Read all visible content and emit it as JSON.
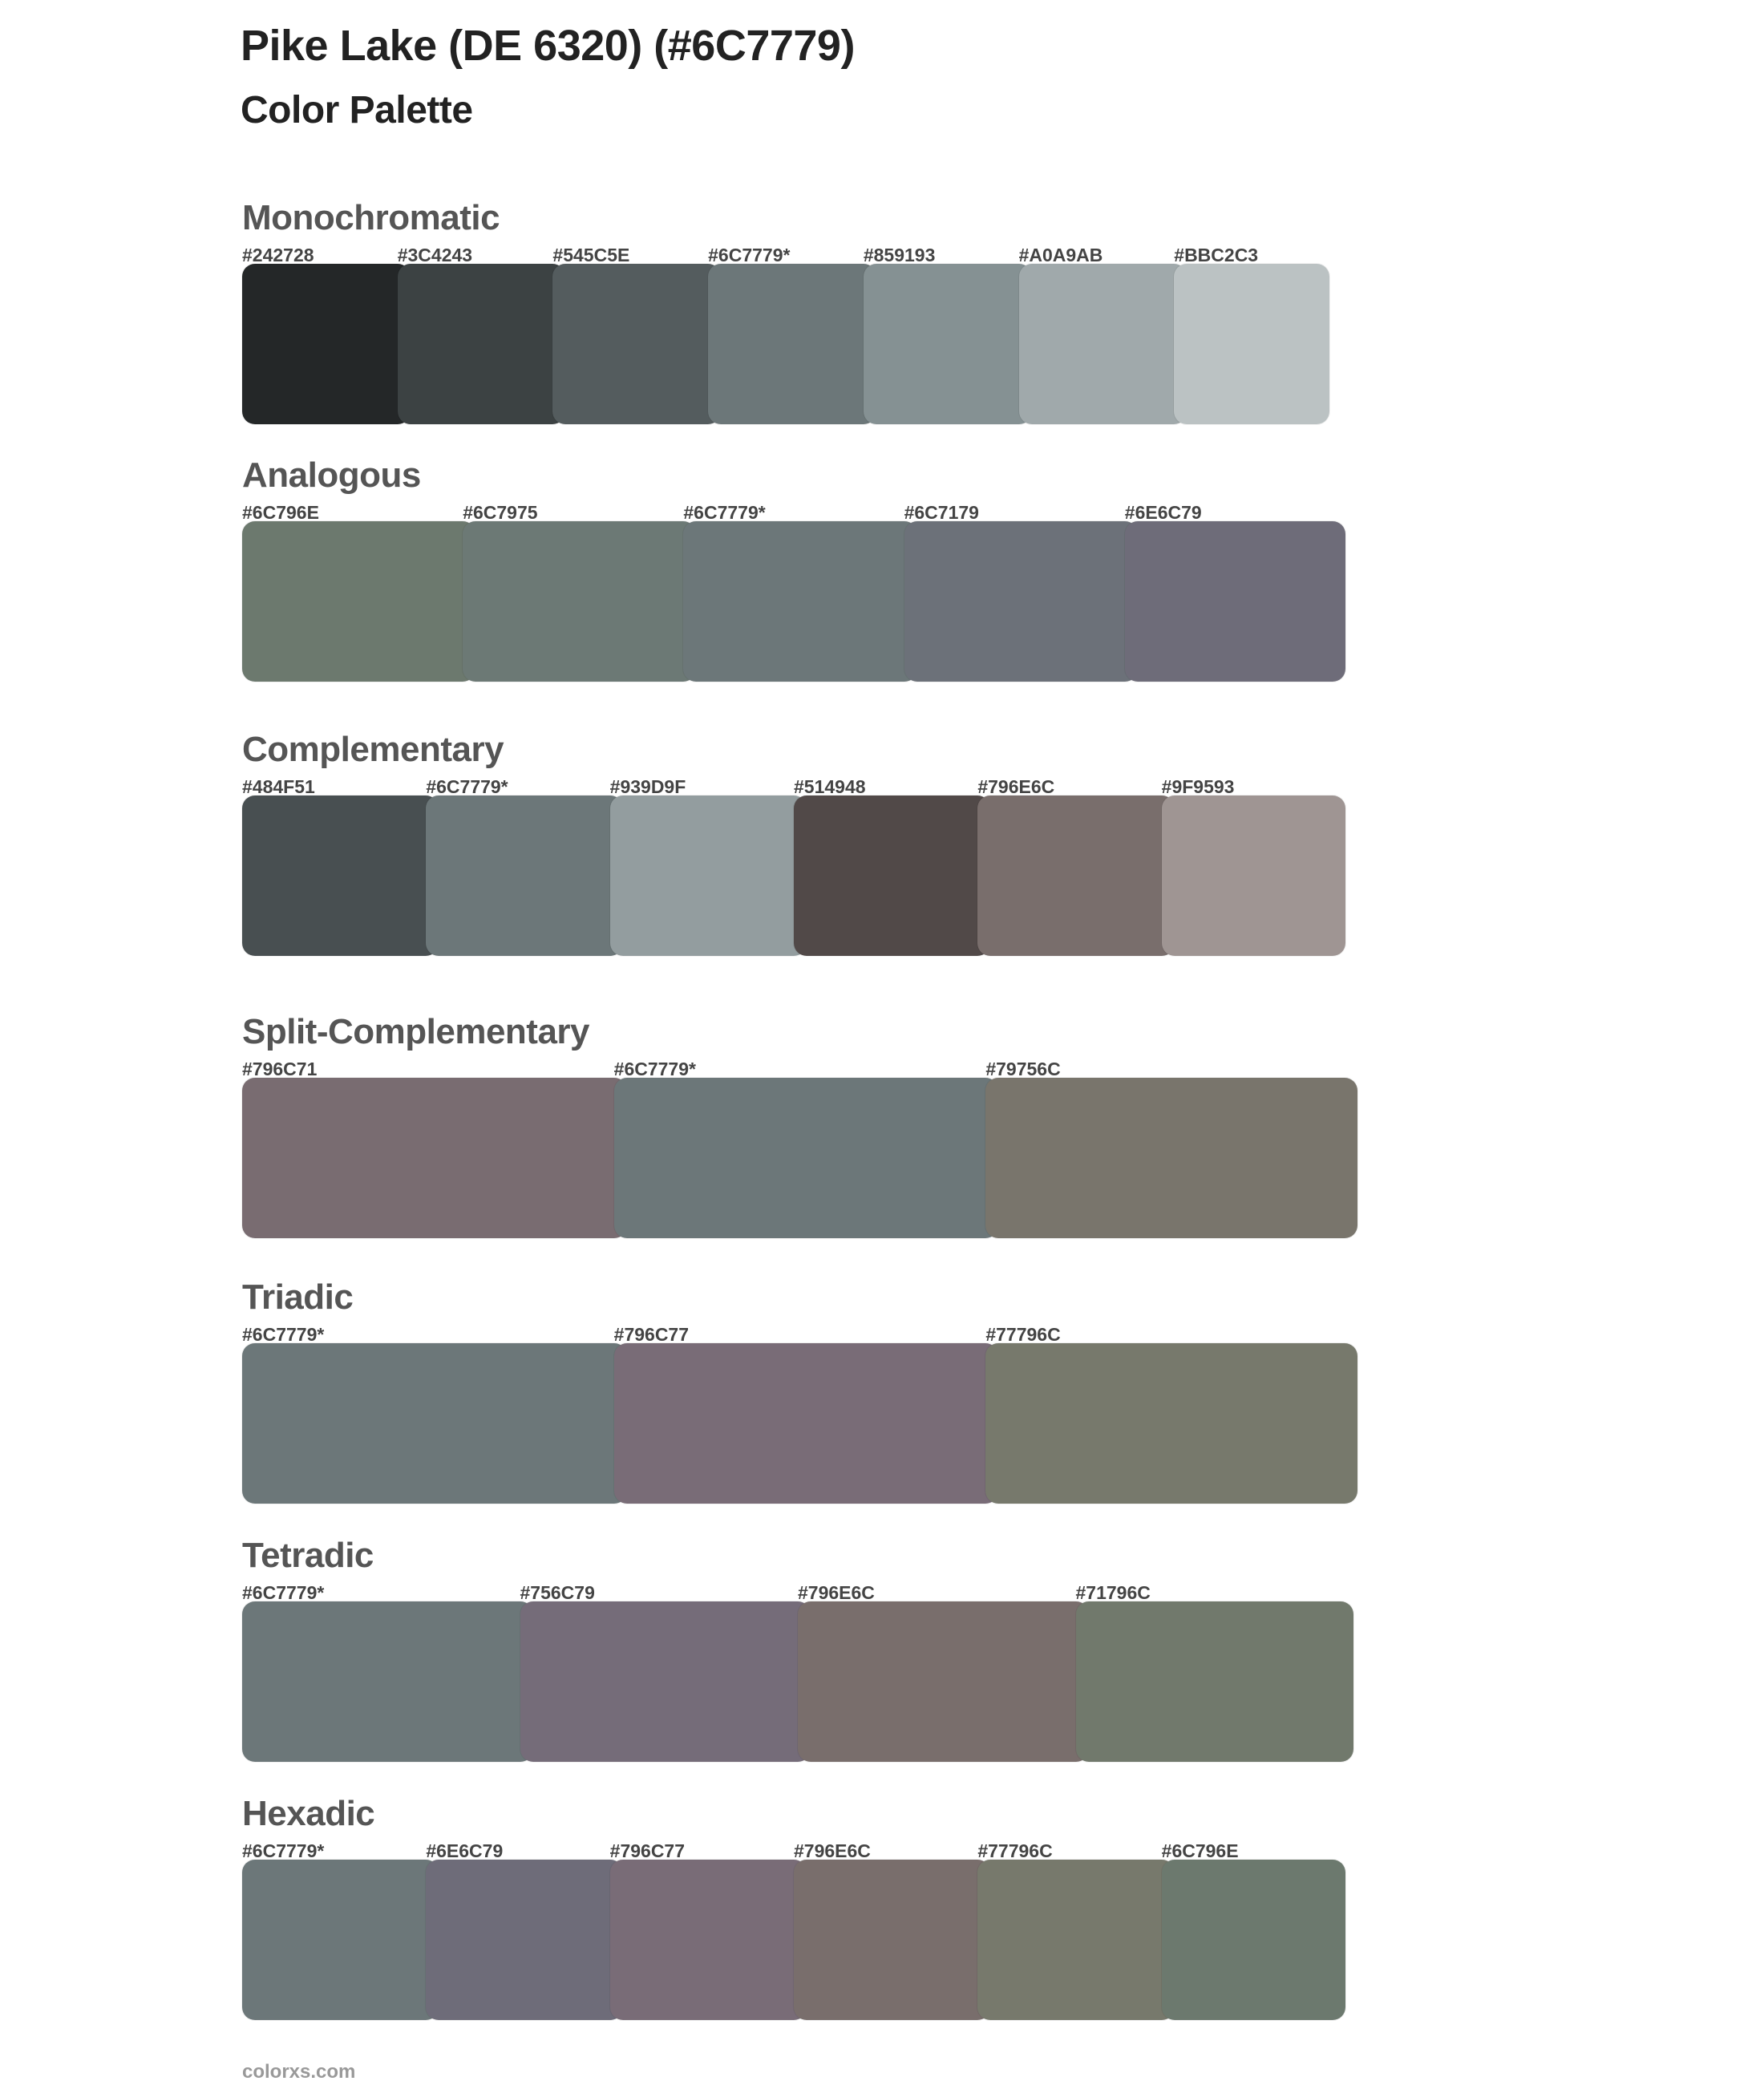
{
  "header": {
    "title": "Pike Lake (DE 6320) (#6C7779)",
    "subtitle": "Color Palette"
  },
  "sections": [
    {
      "name": "Monochromatic",
      "colors": [
        {
          "label": "#242728",
          "hex": "#242728"
        },
        {
          "label": "#3C4243",
          "hex": "#3C4243"
        },
        {
          "label": "#545C5E",
          "hex": "#545C5E"
        },
        {
          "label": "#6C7779*",
          "hex": "#6C7779"
        },
        {
          "label": "#859193",
          "hex": "#859193"
        },
        {
          "label": "#A0A9AB",
          "hex": "#A0A9AB"
        },
        {
          "label": "#BBC2C3",
          "hex": "#BBC2C3"
        }
      ]
    },
    {
      "name": "Analogous",
      "colors": [
        {
          "label": "#6C796E",
          "hex": "#6C796E"
        },
        {
          "label": "#6C7975",
          "hex": "#6C7975"
        },
        {
          "label": "#6C7779*",
          "hex": "#6C7779"
        },
        {
          "label": "#6C7179",
          "hex": "#6C7179"
        },
        {
          "label": "#6E6C79",
          "hex": "#6E6C79"
        }
      ]
    },
    {
      "name": "Complementary",
      "colors": [
        {
          "label": "#484F51",
          "hex": "#484F51"
        },
        {
          "label": "#6C7779*",
          "hex": "#6C7779"
        },
        {
          "label": "#939D9F",
          "hex": "#939D9F"
        },
        {
          "label": "#514948",
          "hex": "#514948"
        },
        {
          "label": "#796E6C",
          "hex": "#796E6C"
        },
        {
          "label": "#9F9593",
          "hex": "#9F9593"
        }
      ]
    },
    {
      "name": "Split-Complementary",
      "colors": [
        {
          "label": "#796C71",
          "hex": "#796C71"
        },
        {
          "label": "#6C7779*",
          "hex": "#6C7779"
        },
        {
          "label": "#79756C",
          "hex": "#79756C"
        }
      ]
    },
    {
      "name": "Triadic",
      "colors": [
        {
          "label": "#6C7779*",
          "hex": "#6C7779"
        },
        {
          "label": "#796C77",
          "hex": "#796C77"
        },
        {
          "label": "#77796C",
          "hex": "#77796C"
        }
      ]
    },
    {
      "name": "Tetradic",
      "colors": [
        {
          "label": "#6C7779*",
          "hex": "#6C7779"
        },
        {
          "label": "#756C79",
          "hex": "#756C79"
        },
        {
          "label": "#796E6C",
          "hex": "#796E6C"
        },
        {
          "label": "#71796C",
          "hex": "#71796C"
        }
      ]
    },
    {
      "name": "Hexadic",
      "colors": [
        {
          "label": "#6C7779*",
          "hex": "#6C7779"
        },
        {
          "label": "#6E6C79",
          "hex": "#6E6C79"
        },
        {
          "label": "#796C77",
          "hex": "#796C77"
        },
        {
          "label": "#796E6C",
          "hex": "#796E6C"
        },
        {
          "label": "#77796C",
          "hex": "#77796C"
        },
        {
          "label": "#6C796E",
          "hex": "#6C796E"
        }
      ]
    }
  ],
  "footer": {
    "text": "colorxs.com"
  }
}
